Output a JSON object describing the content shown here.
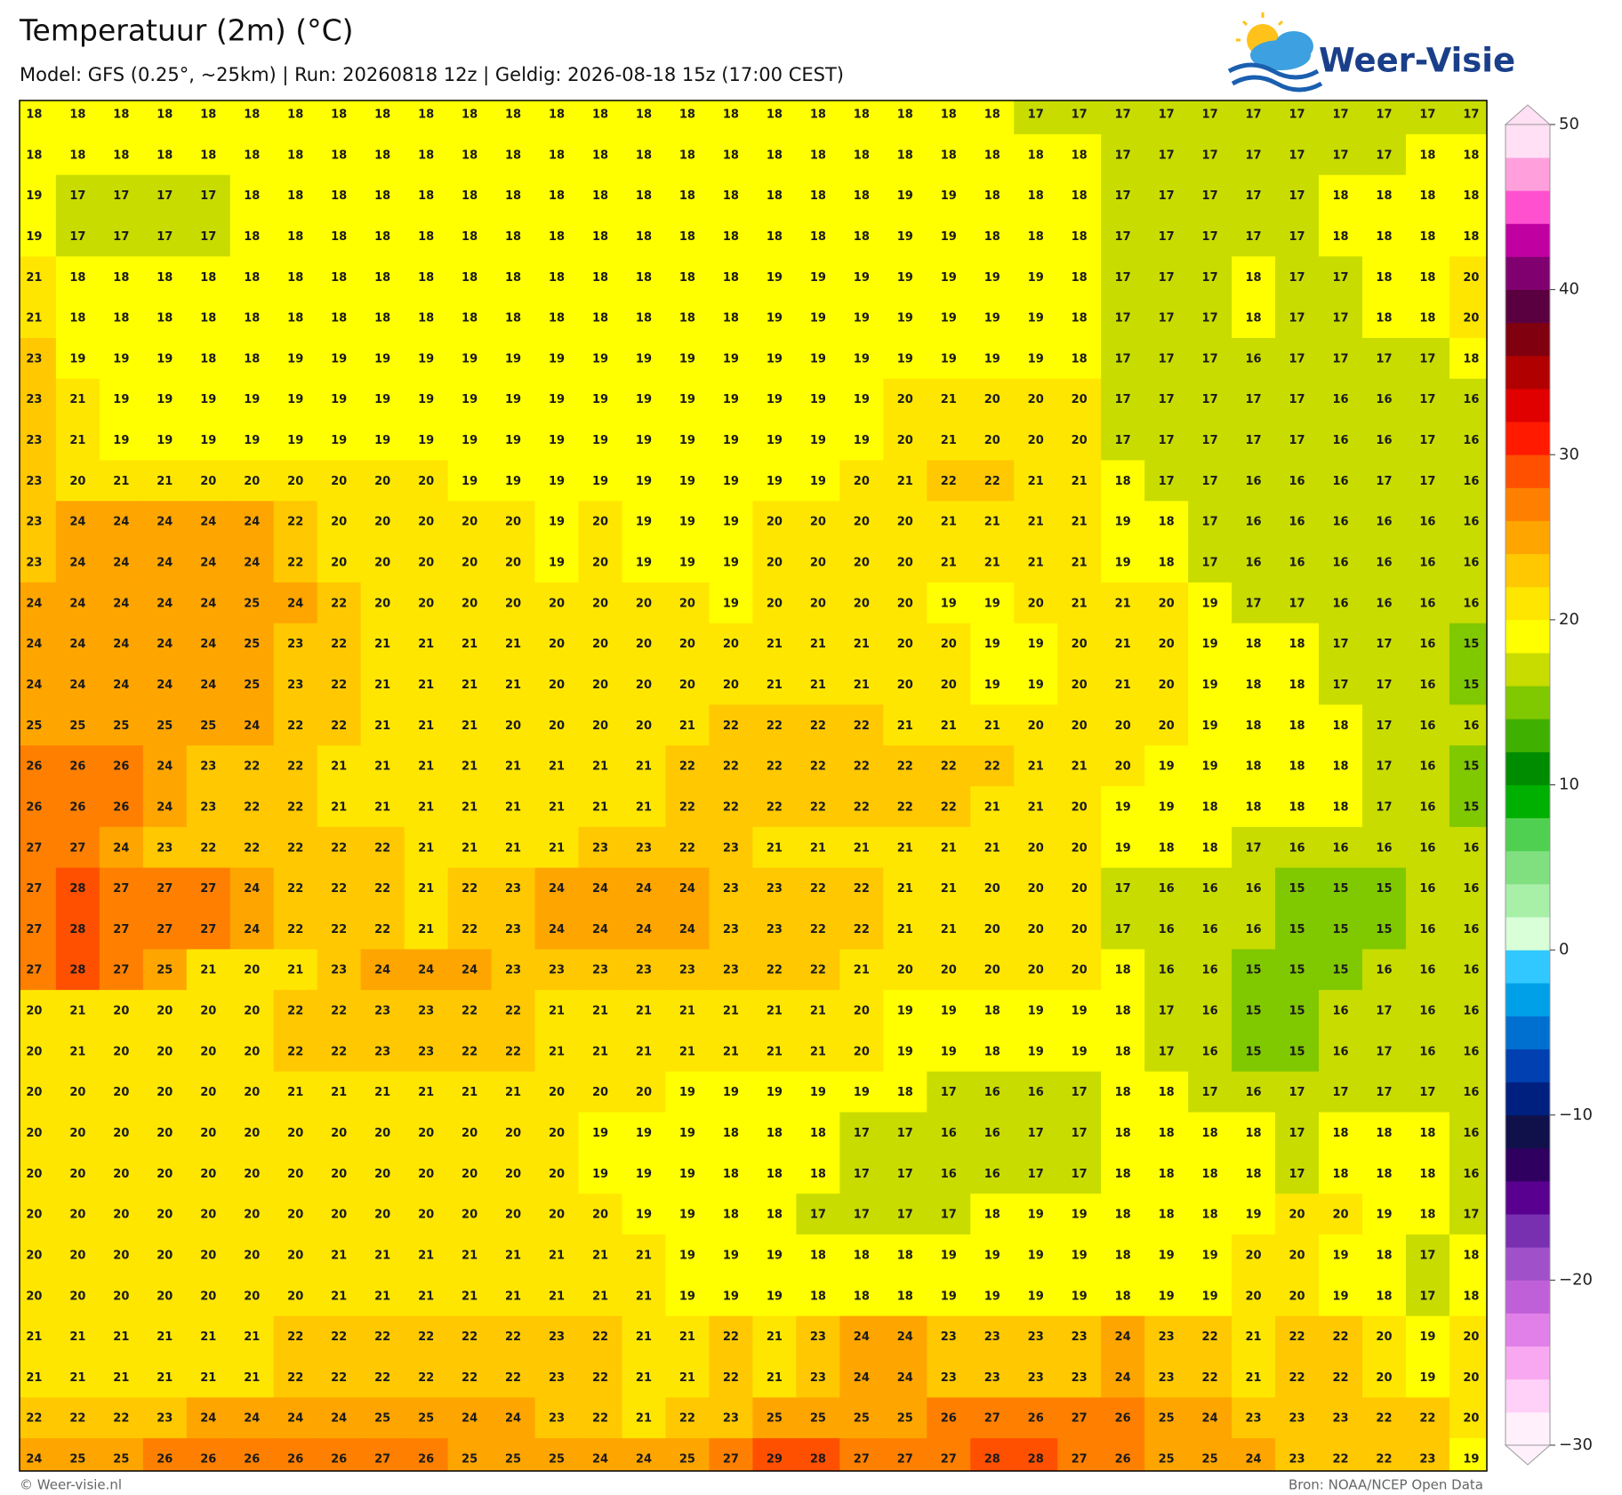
{
  "header": {
    "title": "Temperatuur (2m) (°C)",
    "subtitle": "Model: GFS (0.25°, ~25km)  |  Run: 20260818 12z  |  Geldig: 2026-08-18 15z (17:00 CEST)"
  },
  "logo": "Weer-Visie",
  "grid": {
    "values": [
      [
        18,
        18,
        18,
        18,
        18,
        18,
        18,
        18,
        18,
        18,
        18,
        18,
        18,
        18,
        18,
        18,
        18,
        18,
        18,
        18,
        18,
        18,
        18,
        17,
        17,
        17,
        17,
        17,
        17,
        17,
        17,
        17,
        17,
        17
      ],
      [
        18,
        18,
        18,
        18,
        18,
        18,
        18,
        18,
        18,
        18,
        18,
        18,
        18,
        18,
        18,
        18,
        18,
        18,
        18,
        18,
        18,
        18,
        18,
        18,
        18,
        17,
        17,
        17,
        17,
        17,
        17,
        17,
        18,
        18
      ],
      [
        19,
        17,
        17,
        17,
        17,
        18,
        18,
        18,
        18,
        18,
        18,
        18,
        18,
        18,
        18,
        18,
        18,
        18,
        18,
        18,
        19,
        19,
        18,
        18,
        18,
        17,
        17,
        17,
        17,
        17,
        18,
        18,
        18,
        18
      ],
      [
        19,
        17,
        17,
        17,
        17,
        18,
        18,
        18,
        18,
        18,
        18,
        18,
        18,
        18,
        18,
        18,
        18,
        18,
        18,
        18,
        19,
        19,
        18,
        18,
        18,
        17,
        17,
        17,
        17,
        17,
        18,
        18,
        18,
        18
      ],
      [
        21,
        18,
        18,
        18,
        18,
        18,
        18,
        18,
        18,
        18,
        18,
        18,
        18,
        18,
        18,
        18,
        18,
        19,
        19,
        19,
        19,
        19,
        19,
        19,
        18,
        17,
        17,
        17,
        18,
        17,
        17,
        18,
        18,
        20
      ],
      [
        21,
        18,
        18,
        18,
        18,
        18,
        18,
        18,
        18,
        18,
        18,
        18,
        18,
        18,
        18,
        18,
        18,
        19,
        19,
        19,
        19,
        19,
        19,
        19,
        18,
        17,
        17,
        17,
        18,
        17,
        17,
        18,
        18,
        20
      ],
      [
        23,
        19,
        19,
        19,
        18,
        18,
        19,
        19,
        19,
        19,
        19,
        19,
        19,
        19,
        19,
        19,
        19,
        19,
        19,
        19,
        19,
        19,
        19,
        19,
        18,
        17,
        17,
        17,
        16,
        17,
        17,
        17,
        17,
        18
      ],
      [
        23,
        21,
        19,
        19,
        19,
        19,
        19,
        19,
        19,
        19,
        19,
        19,
        19,
        19,
        19,
        19,
        19,
        19,
        19,
        19,
        20,
        21,
        20,
        20,
        20,
        17,
        17,
        17,
        17,
        17,
        16,
        16,
        17,
        16
      ],
      [
        23,
        21,
        19,
        19,
        19,
        19,
        19,
        19,
        19,
        19,
        19,
        19,
        19,
        19,
        19,
        19,
        19,
        19,
        19,
        19,
        20,
        21,
        20,
        20,
        20,
        17,
        17,
        17,
        17,
        17,
        16,
        16,
        17,
        16
      ],
      [
        23,
        20,
        21,
        21,
        20,
        20,
        20,
        20,
        20,
        20,
        19,
        19,
        19,
        19,
        19,
        19,
        19,
        19,
        19,
        20,
        21,
        22,
        22,
        21,
        21,
        18,
        17,
        17,
        16,
        16,
        16,
        17,
        17,
        16
      ],
      [
        23,
        24,
        24,
        24,
        24,
        24,
        22,
        20,
        20,
        20,
        20,
        20,
        19,
        20,
        19,
        19,
        19,
        20,
        20,
        20,
        20,
        21,
        21,
        21,
        21,
        19,
        18,
        17,
        16,
        16,
        16,
        16,
        16,
        16
      ],
      [
        23,
        24,
        24,
        24,
        24,
        24,
        22,
        20,
        20,
        20,
        20,
        20,
        19,
        20,
        19,
        19,
        19,
        20,
        20,
        20,
        20,
        21,
        21,
        21,
        21,
        19,
        18,
        17,
        16,
        16,
        16,
        16,
        16,
        16
      ],
      [
        24,
        24,
        24,
        24,
        24,
        25,
        24,
        22,
        20,
        20,
        20,
        20,
        20,
        20,
        20,
        20,
        19,
        20,
        20,
        20,
        20,
        19,
        19,
        20,
        21,
        21,
        20,
        19,
        17,
        17,
        16,
        16,
        16,
        16
      ],
      [
        24,
        24,
        24,
        24,
        24,
        25,
        23,
        22,
        21,
        21,
        21,
        21,
        20,
        20,
        20,
        20,
        20,
        21,
        21,
        21,
        20,
        20,
        19,
        19,
        20,
        21,
        20,
        19,
        18,
        18,
        17,
        17,
        16,
        15
      ],
      [
        24,
        24,
        24,
        24,
        24,
        25,
        23,
        22,
        21,
        21,
        21,
        21,
        20,
        20,
        20,
        20,
        20,
        21,
        21,
        21,
        20,
        20,
        19,
        19,
        20,
        21,
        20,
        19,
        18,
        18,
        17,
        17,
        16,
        15
      ],
      [
        25,
        25,
        25,
        25,
        25,
        24,
        22,
        22,
        21,
        21,
        21,
        20,
        20,
        20,
        20,
        21,
        22,
        22,
        22,
        22,
        21,
        21,
        21,
        20,
        20,
        20,
        20,
        19,
        18,
        18,
        18,
        17,
        16,
        16
      ],
      [
        26,
        26,
        26,
        24,
        23,
        22,
        22,
        21,
        21,
        21,
        21,
        21,
        21,
        21,
        21,
        22,
        22,
        22,
        22,
        22,
        22,
        22,
        22,
        21,
        21,
        20,
        19,
        19,
        18,
        18,
        18,
        17,
        16,
        15
      ],
      [
        26,
        26,
        26,
        24,
        23,
        22,
        22,
        21,
        21,
        21,
        21,
        21,
        21,
        21,
        21,
        22,
        22,
        22,
        22,
        22,
        22,
        22,
        21,
        21,
        20,
        19,
        19,
        18,
        18,
        18,
        18,
        17,
        16,
        15
      ],
      [
        27,
        27,
        24,
        23,
        22,
        22,
        22,
        22,
        22,
        21,
        21,
        21,
        21,
        23,
        23,
        22,
        23,
        21,
        21,
        21,
        21,
        21,
        21,
        20,
        20,
        19,
        18,
        18,
        17,
        16,
        16,
        16,
        16,
        16
      ],
      [
        27,
        28,
        27,
        27,
        27,
        24,
        22,
        22,
        22,
        21,
        22,
        23,
        24,
        24,
        24,
        24,
        23,
        23,
        22,
        22,
        21,
        21,
        20,
        20,
        20,
        17,
        16,
        16,
        16,
        15,
        15,
        15,
        16,
        16
      ],
      [
        27,
        28,
        27,
        27,
        27,
        24,
        22,
        22,
        22,
        21,
        22,
        23,
        24,
        24,
        24,
        24,
        23,
        23,
        22,
        22,
        21,
        21,
        20,
        20,
        20,
        17,
        16,
        16,
        16,
        15,
        15,
        15,
        16,
        16
      ],
      [
        27,
        28,
        27,
        25,
        21,
        20,
        21,
        23,
        24,
        24,
        24,
        23,
        23,
        23,
        23,
        23,
        23,
        22,
        22,
        21,
        20,
        20,
        20,
        20,
        20,
        18,
        16,
        16,
        15,
        15,
        15,
        16,
        16,
        16
      ],
      [
        20,
        21,
        20,
        20,
        20,
        20,
        22,
        22,
        23,
        23,
        22,
        22,
        21,
        21,
        21,
        21,
        21,
        21,
        21,
        20,
        19,
        19,
        18,
        19,
        19,
        18,
        17,
        16,
        15,
        15,
        16,
        17,
        16,
        16
      ],
      [
        20,
        21,
        20,
        20,
        20,
        20,
        22,
        22,
        23,
        23,
        22,
        22,
        21,
        21,
        21,
        21,
        21,
        21,
        21,
        20,
        19,
        19,
        18,
        19,
        19,
        18,
        17,
        16,
        15,
        15,
        16,
        17,
        16,
        16
      ],
      [
        20,
        20,
        20,
        20,
        20,
        20,
        21,
        21,
        21,
        21,
        21,
        21,
        20,
        20,
        20,
        19,
        19,
        19,
        19,
        19,
        18,
        17,
        16,
        16,
        17,
        18,
        18,
        17,
        16,
        17,
        17,
        17,
        17,
        16
      ],
      [
        20,
        20,
        20,
        20,
        20,
        20,
        20,
        20,
        20,
        20,
        20,
        20,
        20,
        19,
        19,
        19,
        18,
        18,
        18,
        17,
        17,
        16,
        16,
        17,
        17,
        18,
        18,
        18,
        18,
        17,
        18,
        18,
        18,
        16
      ],
      [
        20,
        20,
        20,
        20,
        20,
        20,
        20,
        20,
        20,
        20,
        20,
        20,
        20,
        19,
        19,
        19,
        18,
        18,
        18,
        17,
        17,
        16,
        16,
        17,
        17,
        18,
        18,
        18,
        18,
        17,
        18,
        18,
        18,
        16
      ],
      [
        20,
        20,
        20,
        20,
        20,
        20,
        20,
        20,
        20,
        20,
        20,
        20,
        20,
        20,
        19,
        19,
        18,
        18,
        17,
        17,
        17,
        17,
        18,
        19,
        19,
        18,
        18,
        18,
        19,
        20,
        20,
        19,
        18,
        17
      ],
      [
        20,
        20,
        20,
        20,
        20,
        20,
        20,
        21,
        21,
        21,
        21,
        21,
        21,
        21,
        21,
        19,
        19,
        19,
        18,
        18,
        18,
        19,
        19,
        19,
        19,
        18,
        19,
        19,
        20,
        20,
        19,
        18,
        17,
        18
      ],
      [
        20,
        20,
        20,
        20,
        20,
        20,
        20,
        21,
        21,
        21,
        21,
        21,
        21,
        21,
        21,
        19,
        19,
        19,
        18,
        18,
        18,
        19,
        19,
        19,
        19,
        18,
        19,
        19,
        20,
        20,
        19,
        18,
        17,
        18
      ],
      [
        21,
        21,
        21,
        21,
        21,
        21,
        22,
        22,
        22,
        22,
        22,
        22,
        23,
        22,
        21,
        21,
        22,
        21,
        23,
        24,
        24,
        23,
        23,
        23,
        23,
        24,
        23,
        22,
        21,
        22,
        22,
        20,
        19,
        20
      ],
      [
        21,
        21,
        21,
        21,
        21,
        21,
        22,
        22,
        22,
        22,
        22,
        22,
        23,
        22,
        21,
        21,
        22,
        21,
        23,
        24,
        24,
        23,
        23,
        23,
        23,
        24,
        23,
        22,
        21,
        22,
        22,
        20,
        19,
        20
      ],
      [
        22,
        22,
        22,
        23,
        24,
        24,
        24,
        24,
        25,
        25,
        24,
        24,
        23,
        22,
        21,
        22,
        23,
        25,
        25,
        25,
        25,
        26,
        27,
        26,
        27,
        26,
        25,
        24,
        23,
        23,
        23,
        22,
        22,
        20
      ],
      [
        24,
        25,
        25,
        26,
        26,
        26,
        26,
        26,
        27,
        26,
        25,
        25,
        25,
        24,
        24,
        25,
        27,
        29,
        28,
        27,
        27,
        27,
        28,
        28,
        27,
        26,
        25,
        25,
        24,
        23,
        22,
        22,
        23,
        19
      ]
    ]
  },
  "colorbar": {
    "lim": [
      -30,
      50
    ],
    "ticks": [
      50,
      40,
      30,
      20,
      10,
      0,
      {
        "value": -10,
        "label": "−10"
      },
      {
        "value": -20,
        "label": "−20"
      },
      {
        "value": -30,
        "label": "−30"
      }
    ],
    "colors": [
      "#fff0fc",
      "#ffd0f8",
      "#f8a8f0",
      "#e080e8",
      "#c060d8",
      "#a050c8",
      "#7830b0",
      "#5a0090",
      "#300060",
      "#10104a",
      "#002080",
      "#0040b0",
      "#0070d0",
      "#00a0e8",
      "#30c8ff",
      "#d8ffd8",
      "#a8f0a8",
      "#80e080",
      "#50d050",
      "#00b000",
      "#008c00",
      "#40b000",
      "#80c800",
      "#c8dc00",
      "#ffff00",
      "#ffe600",
      "#ffc800",
      "#ffa500",
      "#ff8000",
      "#ff5000",
      "#ff1a00",
      "#e00000",
      "#b00000",
      "#800010",
      "#5a0040",
      "#800070",
      "#c000a0",
      "#ff50d0",
      "#ffa0dc",
      "#ffe0f5"
    ]
  },
  "footer": {
    "left": "© Weer-visie.nl",
    "right": "Bron: NOAA/NCEP Open Data"
  }
}
